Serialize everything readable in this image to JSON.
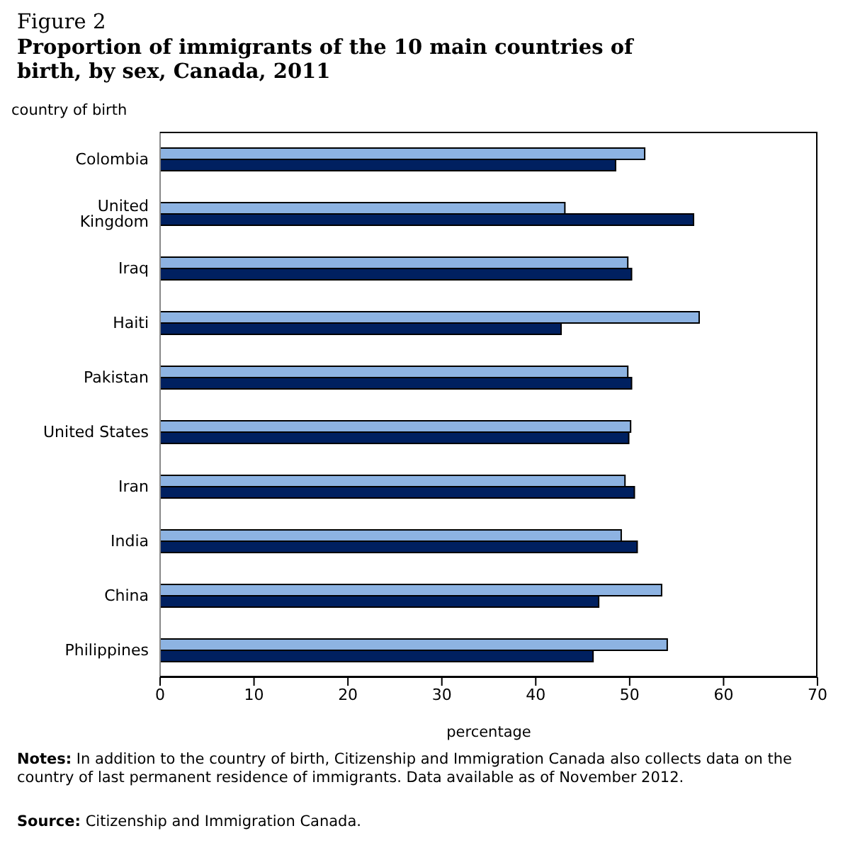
{
  "chart_data": {
    "type": "bar",
    "orientation": "horizontal",
    "title": "Figure 2",
    "subtitle": "Proportion of immigrants of the 10 main countries of birth, by sex, Canada, 2011",
    "ylabel": "country of birth",
    "xlabel": "percentage",
    "categories": [
      "Colombia",
      "United Kingdom",
      "Iraq",
      "Haiti",
      "Pakistan",
      "United States",
      "Iran",
      "India",
      "China",
      "Philippines"
    ],
    "series": [
      {
        "color": "#8db3e2",
        "values": [
          51.6,
          43.1,
          49.8,
          57.4,
          49.8,
          50.1,
          49.5,
          49.1,
          53.4,
          54.0
        ]
      },
      {
        "color": "#002060",
        "values": [
          48.5,
          56.8,
          50.2,
          42.7,
          50.2,
          49.9,
          50.5,
          50.8,
          46.7,
          46.1
        ]
      }
    ],
    "xlim": [
      0,
      70
    ],
    "xticks": [
      0,
      10,
      20,
      30,
      40,
      50,
      60,
      70
    ],
    "grid": false,
    "legend": false,
    "annotations": [
      "Notes: In addition to the country of birth, Citizenship and Immigration Canada also collects data on the country of last permanent residence of immigrants. Data available as of November 2012.",
      "Source: Citizenship and Immigration Canada."
    ]
  }
}
